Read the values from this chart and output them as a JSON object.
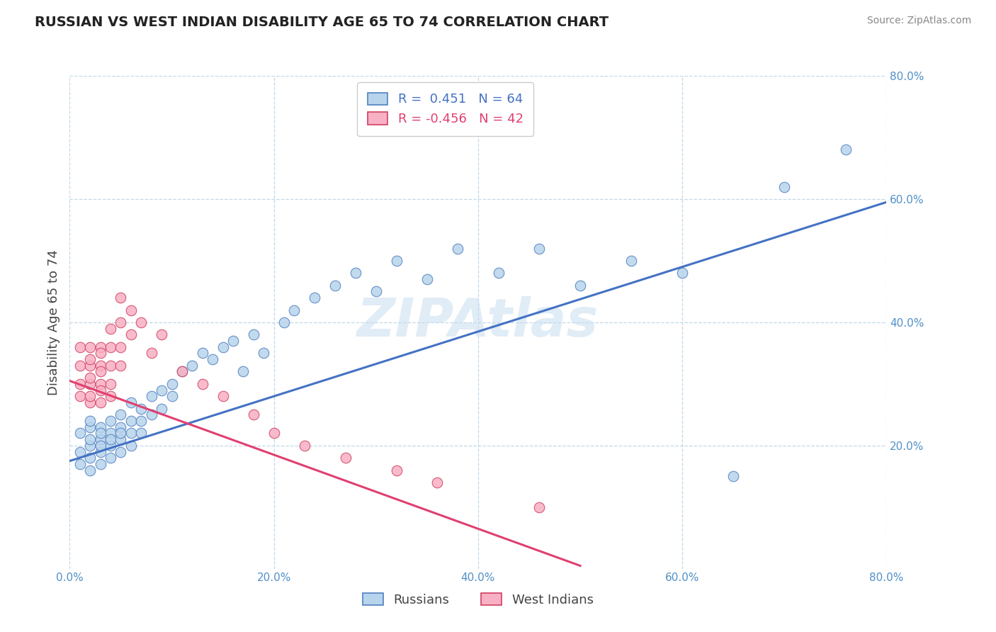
{
  "title": "RUSSIAN VS WEST INDIAN DISABILITY AGE 65 TO 74 CORRELATION CHART",
  "source": "Source: ZipAtlas.com",
  "legend1_label": "Russians",
  "legend2_label": "West Indians",
  "ylabel": "Disability Age 65 to 74",
  "xmin": 0.0,
  "xmax": 0.8,
  "ymin": 0.0,
  "ymax": 0.8,
  "xticks": [
    0.0,
    0.2,
    0.4,
    0.6,
    0.8
  ],
  "yticks": [
    0.2,
    0.4,
    0.6,
    0.8
  ],
  "xtick_labels": [
    "0.0%",
    "20.0%",
    "40.0%",
    "60.0%",
    "80.0%"
  ],
  "ytick_labels": [
    "20.0%",
    "40.0%",
    "60.0%",
    "80.0%"
  ],
  "R_russian": 0.451,
  "N_russian": 64,
  "R_westindian": -0.456,
  "N_westindian": 42,
  "russian_face_color": "#b8d4ec",
  "russian_edge_color": "#5080c0",
  "westindian_face_color": "#f8b0c4",
  "westindian_edge_color": "#d04060",
  "russian_line_color": "#4472c4",
  "westindian_line_color": "#e04070",
  "grid_color": "#c0d8e8",
  "tick_color": "#5090c8",
  "russians_x": [
    0.01,
    0.01,
    0.01,
    0.02,
    0.02,
    0.02,
    0.02,
    0.02,
    0.02,
    0.03,
    0.03,
    0.03,
    0.03,
    0.03,
    0.03,
    0.04,
    0.04,
    0.04,
    0.04,
    0.04,
    0.05,
    0.05,
    0.05,
    0.05,
    0.05,
    0.06,
    0.06,
    0.06,
    0.06,
    0.07,
    0.07,
    0.07,
    0.08,
    0.08,
    0.09,
    0.09,
    0.1,
    0.1,
    0.11,
    0.12,
    0.13,
    0.14,
    0.15,
    0.16,
    0.17,
    0.18,
    0.19,
    0.21,
    0.22,
    0.24,
    0.26,
    0.28,
    0.3,
    0.32,
    0.35,
    0.38,
    0.42,
    0.46,
    0.5,
    0.55,
    0.6,
    0.65,
    0.7,
    0.76
  ],
  "russians_y": [
    0.19,
    0.22,
    0.17,
    0.2,
    0.23,
    0.18,
    0.21,
    0.24,
    0.16,
    0.21,
    0.19,
    0.23,
    0.17,
    0.22,
    0.2,
    0.22,
    0.2,
    0.18,
    0.24,
    0.21,
    0.23,
    0.21,
    0.19,
    0.25,
    0.22,
    0.24,
    0.22,
    0.2,
    0.27,
    0.26,
    0.24,
    0.22,
    0.28,
    0.25,
    0.29,
    0.26,
    0.3,
    0.28,
    0.32,
    0.33,
    0.35,
    0.34,
    0.36,
    0.37,
    0.32,
    0.38,
    0.35,
    0.4,
    0.42,
    0.44,
    0.46,
    0.48,
    0.45,
    0.5,
    0.47,
    0.52,
    0.48,
    0.52,
    0.46,
    0.5,
    0.48,
    0.15,
    0.62,
    0.68
  ],
  "westindians_x": [
    0.01,
    0.01,
    0.01,
    0.01,
    0.02,
    0.02,
    0.02,
    0.02,
    0.02,
    0.02,
    0.02,
    0.03,
    0.03,
    0.03,
    0.03,
    0.03,
    0.03,
    0.03,
    0.04,
    0.04,
    0.04,
    0.04,
    0.04,
    0.05,
    0.05,
    0.05,
    0.05,
    0.06,
    0.06,
    0.07,
    0.08,
    0.09,
    0.11,
    0.13,
    0.15,
    0.18,
    0.2,
    0.23,
    0.27,
    0.32,
    0.36,
    0.46
  ],
  "westindians_y": [
    0.28,
    0.3,
    0.33,
    0.36,
    0.27,
    0.3,
    0.33,
    0.36,
    0.28,
    0.31,
    0.34,
    0.27,
    0.3,
    0.33,
    0.36,
    0.29,
    0.32,
    0.35,
    0.3,
    0.33,
    0.36,
    0.39,
    0.28,
    0.33,
    0.36,
    0.4,
    0.44,
    0.38,
    0.42,
    0.4,
    0.35,
    0.38,
    0.32,
    0.3,
    0.28,
    0.25,
    0.22,
    0.2,
    0.18,
    0.16,
    0.14,
    0.1
  ],
  "russian_trend_x": [
    0.0,
    0.8
  ],
  "russian_trend_y": [
    0.175,
    0.595
  ],
  "westindian_trend_x": [
    0.0,
    0.5
  ],
  "westindian_trend_y": [
    0.305,
    0.005
  ]
}
